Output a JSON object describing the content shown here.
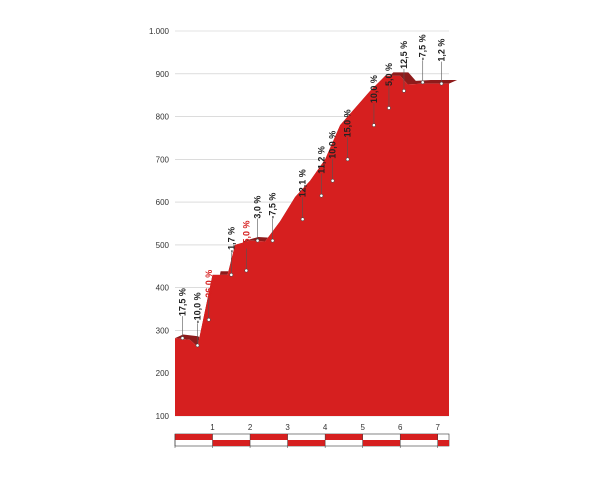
{
  "chart_data": {
    "type": "area",
    "title": "",
    "xlabel": "",
    "ylabel": "",
    "xlim": [
      0,
      7.3
    ],
    "ylim": [
      100,
      1000
    ],
    "y_ticks": [
      "100",
      "200",
      "300",
      "400",
      "500",
      "600",
      "700",
      "800",
      "900",
      "1.000"
    ],
    "x_ticks": [
      "1",
      "2",
      "3",
      "4",
      "5",
      "6",
      "7"
    ],
    "grid": "horizontal",
    "colors": {
      "fill": "#d61f1f",
      "side": "#8e1b1b",
      "grade_text": "#222222",
      "grade_highlight": "#d61f1f",
      "grid": "#c8c8c8"
    },
    "profile": [
      {
        "x": 0.0,
        "y": 282
      },
      {
        "x": 0.4,
        "y": 278
      },
      {
        "x": 0.6,
        "y": 262
      },
      {
        "x": 1.0,
        "y": 430
      },
      {
        "x": 1.4,
        "y": 430
      },
      {
        "x": 1.6,
        "y": 500
      },
      {
        "x": 2.0,
        "y": 510
      },
      {
        "x": 2.4,
        "y": 508
      },
      {
        "x": 2.8,
        "y": 555
      },
      {
        "x": 3.2,
        "y": 612
      },
      {
        "x": 3.6,
        "y": 650
      },
      {
        "x": 4.0,
        "y": 700
      },
      {
        "x": 4.4,
        "y": 780
      },
      {
        "x": 4.8,
        "y": 820
      },
      {
        "x": 5.2,
        "y": 860
      },
      {
        "x": 5.6,
        "y": 895
      },
      {
        "x": 6.0,
        "y": 895
      },
      {
        "x": 6.2,
        "y": 875
      },
      {
        "x": 6.6,
        "y": 877
      },
      {
        "x": 7.3,
        "y": 877
      }
    ],
    "grade_labels": [
      {
        "text": "17,5 %",
        "x": 0.2,
        "y": 282,
        "highlight": false
      },
      {
        "text": "-10,0 %",
        "x": 0.6,
        "y": 265,
        "highlight": false
      },
      {
        "text": "26,0 %",
        "x": 0.9,
        "y": 325,
        "highlight": true
      },
      {
        "text": "-1,7 %",
        "x": 1.5,
        "y": 430,
        "highlight": false
      },
      {
        "text": "25,0 %",
        "x": 1.9,
        "y": 440,
        "highlight": true
      },
      {
        "text": "3,0 %",
        "x": 2.2,
        "y": 510,
        "highlight": false
      },
      {
        "text": "-7,5 %",
        "x": 2.6,
        "y": 510,
        "highlight": false
      },
      {
        "text": "12,1 %",
        "x": 3.4,
        "y": 560,
        "highlight": false
      },
      {
        "text": "11,2 %",
        "x": 3.9,
        "y": 615,
        "highlight": false
      },
      {
        "text": "10,0 %",
        "x": 4.2,
        "y": 650,
        "highlight": false
      },
      {
        "text": "15,0 %",
        "x": 4.6,
        "y": 700,
        "highlight": false
      },
      {
        "text": "10,0 %",
        "x": 5.3,
        "y": 780,
        "highlight": false
      },
      {
        "text": "5,0 %",
        "x": 5.7,
        "y": 820,
        "highlight": false
      },
      {
        "text": "12,5 %",
        "x": 6.1,
        "y": 860,
        "highlight": false
      },
      {
        "text": "-7,5 %",
        "x": 6.6,
        "y": 880,
        "highlight": false
      },
      {
        "text": "1,2 %",
        "x": 7.1,
        "y": 877,
        "highlight": false
      }
    ]
  }
}
